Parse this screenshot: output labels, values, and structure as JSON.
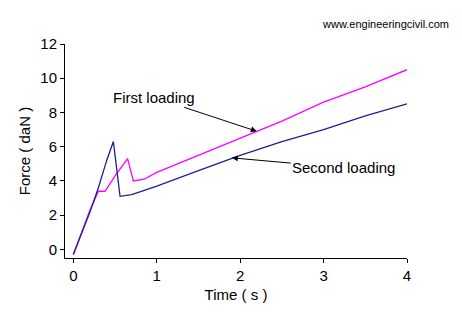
{
  "chart_data": {
    "type": "line",
    "source": "www.engineeringcivil.com",
    "x_label": "Time ( s )",
    "y_label": "Force ( daN )",
    "xlim": [
      -0.1,
      4
    ],
    "ylim": [
      -0.5,
      12
    ],
    "xticks": [
      0,
      1,
      2,
      3,
      4
    ],
    "yticks": [
      0,
      2,
      4,
      6,
      8,
      10,
      12
    ],
    "grid": false,
    "series": [
      {
        "name": "First loading",
        "color": "#ff00ff",
        "x": [
          0,
          0.1,
          0.2,
          0.3,
          0.38,
          0.5,
          0.65,
          0.72,
          0.85,
          1.0,
          1.5,
          2.0,
          2.5,
          3.0,
          3.5,
          4.0
        ],
        "values": [
          -0.3,
          1.0,
          2.3,
          3.4,
          3.4,
          4.3,
          5.3,
          4.0,
          4.1,
          4.5,
          5.5,
          6.5,
          7.5,
          8.6,
          9.5,
          10.5
        ]
      },
      {
        "name": "Second loading",
        "color": "#1f1f8f",
        "x": [
          0,
          0.1,
          0.2,
          0.3,
          0.4,
          0.48,
          0.52,
          0.56,
          0.7,
          1.0,
          1.5,
          2.0,
          2.5,
          3.0,
          3.5,
          4.0
        ],
        "values": [
          -0.3,
          0.9,
          2.2,
          3.6,
          5.2,
          6.3,
          4.5,
          3.1,
          3.2,
          3.7,
          4.6,
          5.5,
          6.3,
          7.0,
          7.8,
          8.5
        ]
      }
    ],
    "annotations": [
      {
        "text": "First loading",
        "x": 2.2,
        "y": 6.9
      },
      {
        "text": "Second loading",
        "x": 1.9,
        "y": 5.35
      }
    ]
  }
}
